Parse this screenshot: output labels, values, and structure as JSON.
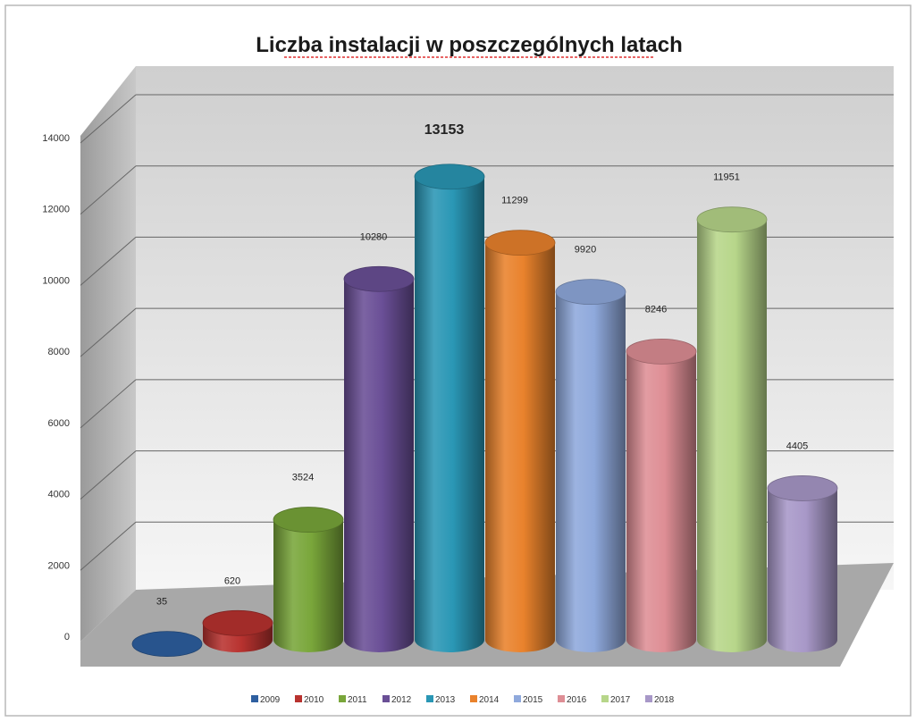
{
  "chart_data": {
    "type": "bar",
    "title": "Liczba instalacji w poszczególnych latach",
    "categories": [
      "2009",
      "2010",
      "2011",
      "2012",
      "2013",
      "2014",
      "2015",
      "2016",
      "2017",
      "2018"
    ],
    "values": [
      35,
      620,
      3524,
      10280,
      13153,
      11299,
      9920,
      8246,
      11951,
      4405
    ],
    "data_labels": [
      "35",
      "620",
      "3524",
      "10280",
      "13153",
      "11299",
      "9920",
      "8246",
      "11951",
      "4405"
    ],
    "highlight_index": 4,
    "colors": [
      "#2E5FA0",
      "#B8322F",
      "#79A63A",
      "#6A4F96",
      "#2A97B5",
      "#E9822C",
      "#8FA9DC",
      "#DE8E95",
      "#B7D68A",
      "#A898C8"
    ],
    "ylim": [
      0,
      14000
    ],
    "yticks": [
      0,
      2000,
      4000,
      6000,
      8000,
      10000,
      12000,
      14000
    ],
    "ytick_labels": [
      "0",
      "2000",
      "4000",
      "6000",
      "8000",
      "10000",
      "12000",
      "14000"
    ],
    "grid": true,
    "legend": "bottom",
    "legend_entries": [
      "2009",
      "2010",
      "2011",
      "2012",
      "2013",
      "2014",
      "2015",
      "2016",
      "2017",
      "2018"
    ],
    "style": "3d-cylinder"
  }
}
